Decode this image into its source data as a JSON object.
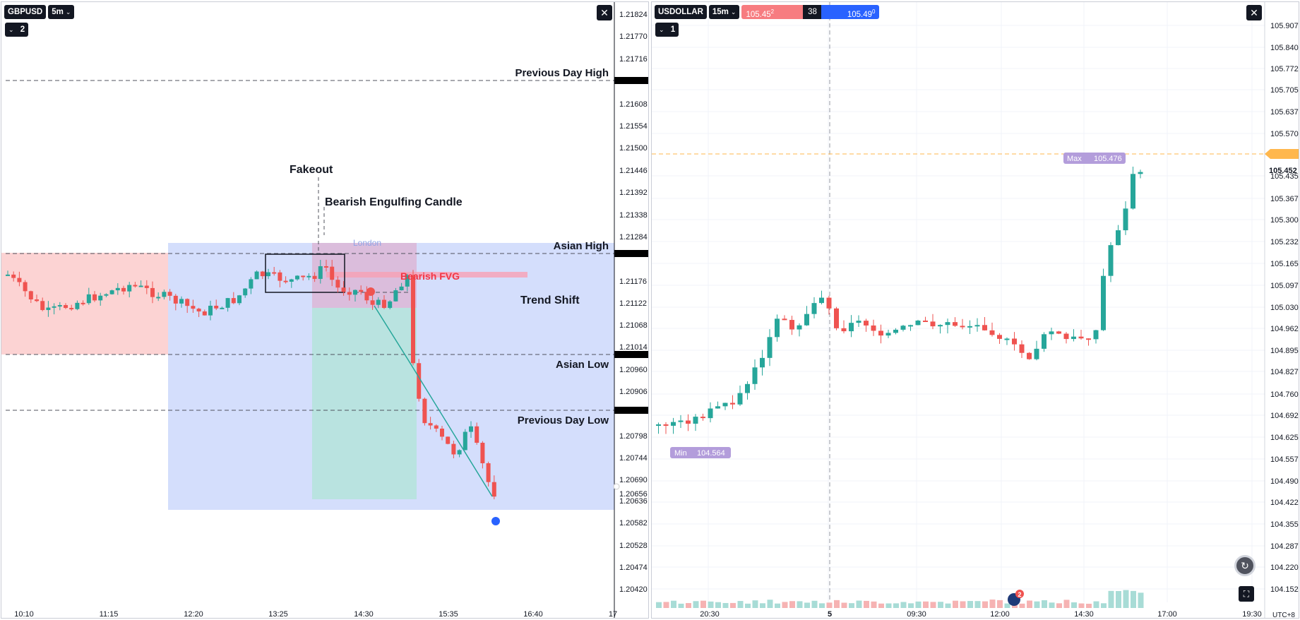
{
  "left": {
    "symbol": "GBPUSD",
    "interval": "5m",
    "layers_count": "2",
    "close_icon": "close-icon",
    "price_labels": [
      "1.21824",
      "1.21770",
      "1.21716",
      "1.21608",
      "1.21554",
      "1.21500",
      "1.21446",
      "1.21392",
      "1.21338",
      "1.21284",
      "1.21176",
      "1.21122",
      "1.21068",
      "1.21014",
      "1.20960",
      "1.20906",
      "1.20798",
      "1.20744",
      "1.20690",
      "1.20656",
      "1.20636",
      "1.20582",
      "1.20528",
      "1.20474",
      "1.20420"
    ],
    "time_labels": [
      "10:10",
      "11:15",
      "12:20",
      "13:25",
      "14:30",
      "15:35",
      "16:40",
      "17"
    ],
    "annotations": {
      "prev_day_high": "Previous Day High",
      "asian_high": "Asian High",
      "asian_low": "Asian Low",
      "prev_day_low": "Previous Day Low",
      "fakeout": "Fakeout",
      "engulfing": "Bearish Engulfing Candle",
      "bearish_fvg": "Bearish FVG",
      "trend_shift": "Trend Shift",
      "london": "London"
    }
  },
  "right": {
    "symbol": "USDOLLAR",
    "interval": "15m",
    "sell_price": "105.45",
    "sell_price_sup": "2",
    "spread": "38",
    "buy_price": "105.49",
    "buy_price_sup": "0",
    "layers_count": "1",
    "max_label": "Max",
    "max_value": "105.476",
    "min_label": "Min",
    "min_value": "104.564",
    "current_price": "105.452",
    "price_labels": [
      "105.907",
      "105.840",
      "105.772",
      "105.705",
      "105.637",
      "105.570",
      "105.435",
      "105.367",
      "105.300",
      "105.232",
      "105.165",
      "105.097",
      "105.030",
      "104.962",
      "104.895",
      "104.827",
      "104.760",
      "104.692",
      "104.625",
      "104.557",
      "104.490",
      "104.422",
      "104.355",
      "104.287",
      "104.220",
      "104.152"
    ],
    "time_labels": [
      "20:30",
      "5",
      "09:30",
      "12:00",
      "14:30",
      "17:00",
      "19:30"
    ],
    "timezone": "UTC+8",
    "event_badge": "2",
    "colors": {
      "up": "#26a69a",
      "down": "#ef5350",
      "accent": "#2962ff"
    }
  }
}
